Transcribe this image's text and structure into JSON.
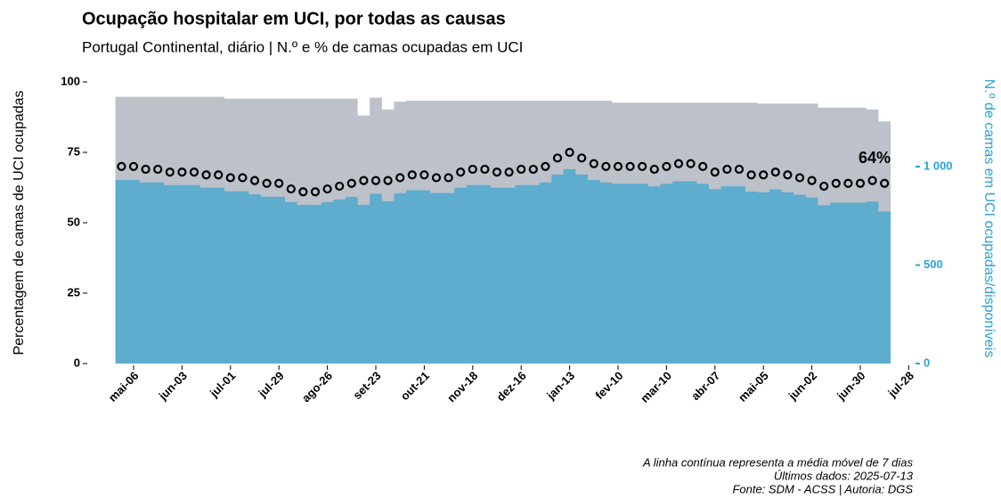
{
  "chart_data": {
    "type": "area-dots",
    "title": "Ocupação hospitalar em UCI, por todas as causas",
    "subtitle": "Portugal Continental, diário | N.º e % de camas ocupadas em UCI",
    "y_label": "Percentagem de camas de UCI ocupadas",
    "y2_label": "N.º de camas em UCI ocupadas/disponíveis",
    "annotation": "64%",
    "notes": [
      "A linha contínua representa a média móvel de 7 dias",
      "Últimos dados: 2025-07-13",
      "Fonte: SDM - ACSS | Autoria: DGS"
    ],
    "categories": [
      null,
      "mai-06",
      null,
      null,
      null,
      "jun-03",
      null,
      null,
      null,
      "jul-01",
      null,
      null,
      null,
      "jul-29",
      null,
      null,
      null,
      "ago-26",
      null,
      null,
      null,
      "set-23",
      null,
      null,
      null,
      "out-21",
      null,
      null,
      null,
      "nov-18",
      null,
      null,
      null,
      "dez-16",
      null,
      null,
      null,
      "jan-13",
      null,
      null,
      null,
      "fev-10",
      null,
      null,
      null,
      "mar-10",
      null,
      null,
      null,
      "abr-07",
      null,
      null,
      null,
      "mai-05",
      null,
      null,
      null,
      "jun-02",
      null,
      null,
      null,
      "jun-30",
      null,
      null,
      null,
      "jul-28"
    ],
    "series": [
      {
        "kind": "area",
        "axis": "y2",
        "color": "#bcc1ca",
        "values": [
          1355,
          1355,
          1355,
          1355,
          1355,
          1355,
          1355,
          1355,
          1355,
          1345,
          1345,
          1345,
          1345,
          1345,
          1345,
          1345,
          1345,
          1345,
          1345,
          1345,
          1260,
          1350,
          1290,
          1330,
          1335,
          1335,
          1335,
          1335,
          1335,
          1335,
          1335,
          1335,
          1335,
          1335,
          1335,
          1335,
          1335,
          1335,
          1335,
          1335,
          1335,
          1325,
          1325,
          1325,
          1325,
          1325,
          1325,
          1325,
          1325,
          1325,
          1325,
          1325,
          1325,
          1320,
          1320,
          1320,
          1320,
          1320,
          1300,
          1300,
          1300,
          1300,
          1290,
          1230,
          null,
          null
        ]
      },
      {
        "kind": "area",
        "axis": "y2",
        "color": "#5eacce",
        "values": [
          933,
          933,
          920,
          920,
          906,
          906,
          906,
          893,
          893,
          875,
          875,
          860,
          847,
          847,
          820,
          806,
          806,
          820,
          833,
          847,
          806,
          862,
          824,
          865,
          880,
          880,
          866,
          866,
          893,
          906,
          906,
          893,
          893,
          906,
          906,
          920,
          960,
          987,
          960,
          933,
          920,
          913,
          913,
          913,
          900,
          913,
          926,
          926,
          913,
          886,
          900,
          900,
          873,
          870,
          884,
          870,
          857,
          843,
          804,
          817,
          817,
          817,
          823,
          772,
          null,
          null
        ]
      },
      {
        "kind": "dots",
        "axis": "y",
        "color": "#000000",
        "values": [
          70,
          70,
          69,
          69,
          68,
          68,
          68,
          67,
          67,
          66,
          66,
          65,
          64,
          64,
          62,
          61,
          61,
          62,
          63,
          64,
          65,
          65,
          65,
          66,
          67,
          67,
          66,
          66,
          68,
          69,
          69,
          68,
          68,
          69,
          69,
          70,
          73,
          75,
          73,
          71,
          70,
          70,
          70,
          70,
          69,
          70,
          71,
          71,
          70,
          68,
          69,
          69,
          67,
          67,
          68,
          67,
          66,
          65,
          63,
          64,
          64,
          64,
          65,
          64,
          null,
          null
        ]
      }
    ],
    "ylim": [
      0,
      100
    ],
    "yticks": [
      0,
      25,
      50,
      75,
      100
    ],
    "y2lim": [
      0,
      1430
    ],
    "y2ticks": [
      0,
      500,
      {
        "value": 1000,
        "label": "1 000"
      }
    ],
    "y2_color": "#2ba3d6"
  }
}
